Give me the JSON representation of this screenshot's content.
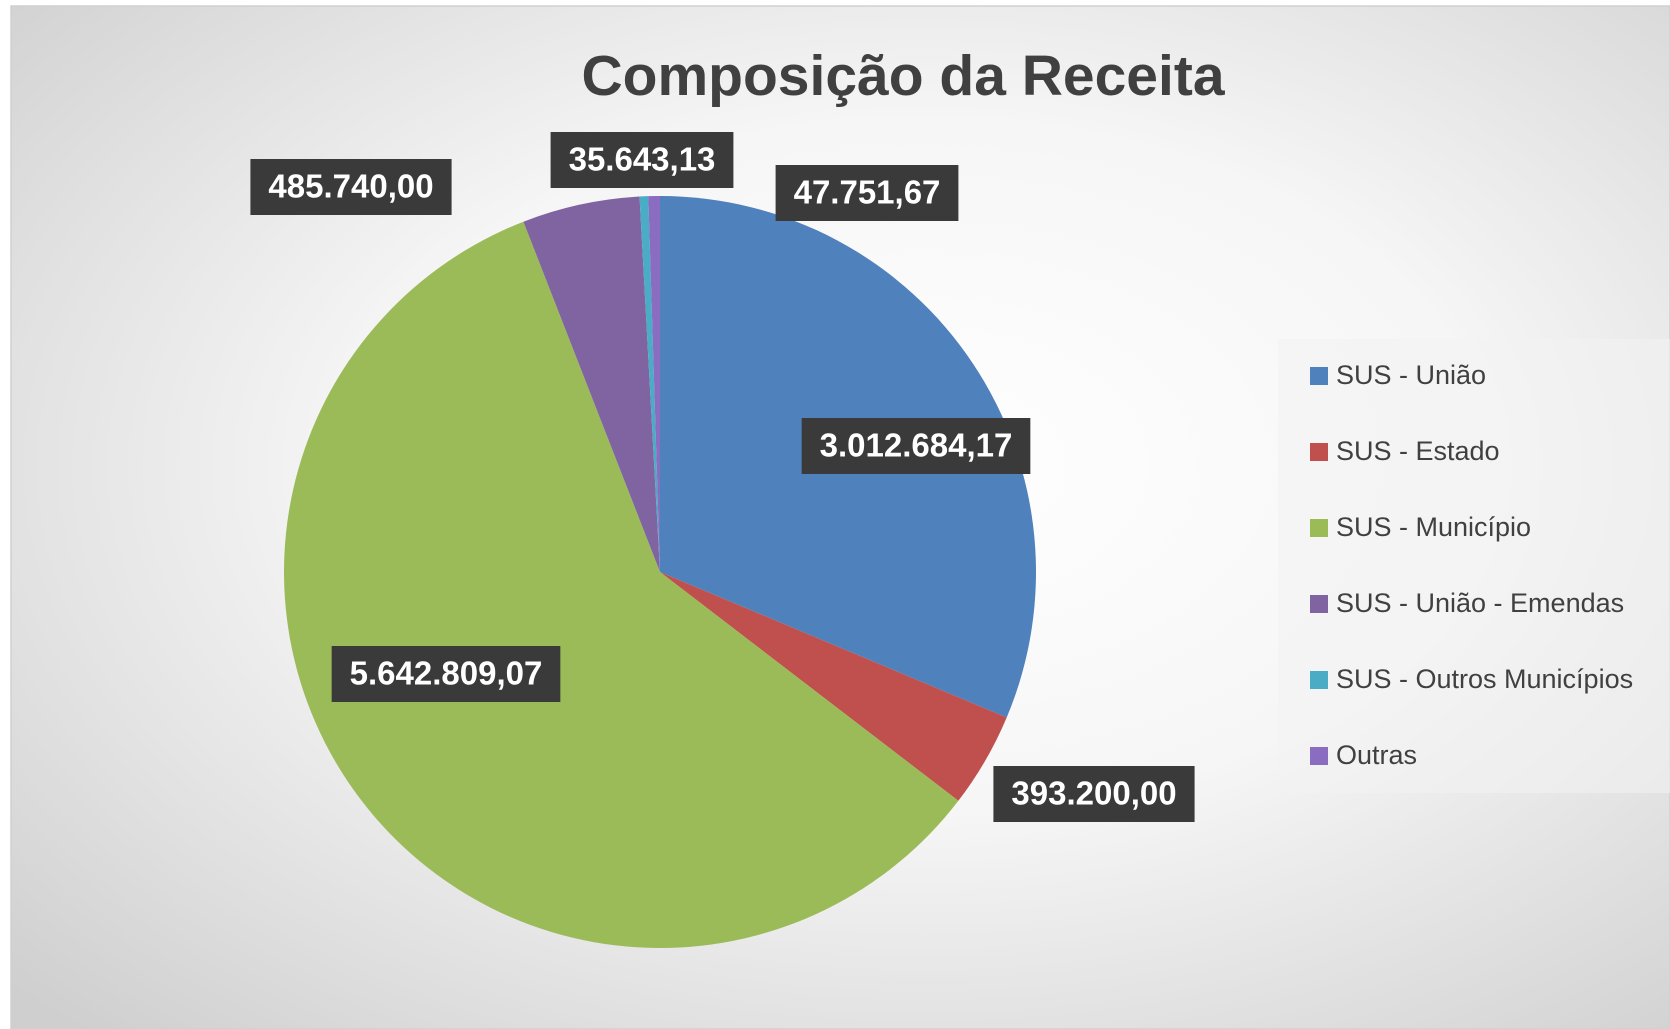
{
  "chart_data": {
    "type": "pie",
    "title": "Composição da Receita",
    "categories": [
      "SUS - União",
      "SUS - Estado",
      "SUS - Município",
      "SUS - União - Emendas",
      "SUS - Outros Municípios",
      "Outras"
    ],
    "values": [
      3012684.17,
      393200.0,
      5642809.07,
      485740.0,
      35643.13,
      47751.67
    ],
    "value_labels": [
      "3.012.684,17",
      "393.200,00",
      "5.642.809,07",
      "485.740,00",
      "35.643,13",
      "47.751,67"
    ],
    "colors": [
      "#4f81bd",
      "#c0504d",
      "#9bbb59",
      "#8064a2",
      "#4bacc6",
      "#8a6cc0"
    ],
    "legend": "right"
  }
}
